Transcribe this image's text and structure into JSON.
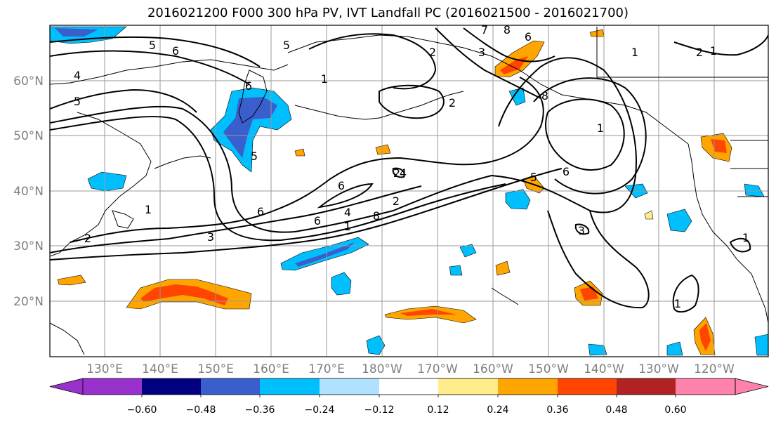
{
  "title": "2016021200 F000 300 hPa PV, IVT Landfall PC (2016021500 - 2016021700)",
  "map": {
    "lat_labels": [
      "60°N",
      "50°N",
      "40°N",
      "30°N",
      "20°N"
    ],
    "lon_labels": [
      "130°E",
      "140°E",
      "150°E",
      "160°E",
      "170°E",
      "180°W",
      "170°W",
      "160°W",
      "150°W",
      "140°W",
      "130°W",
      "120°W"
    ],
    "contour_labels": [
      "5",
      "6",
      "5",
      "4",
      "5",
      "7",
      "8",
      "6",
      "3",
      "1",
      "2",
      "2",
      "1",
      "6",
      "8",
      "6",
      "1",
      "5",
      "6",
      "4",
      "2",
      "6",
      "8",
      "6",
      "5",
      "4",
      "3",
      "2",
      "1",
      "1",
      "3",
      "2",
      "1",
      "1",
      "1",
      "2"
    ]
  },
  "colorbar": {
    "tick_labels": [
      "−0.60",
      "−0.48",
      "−0.36",
      "−0.24",
      "−0.12",
      "0.12",
      "0.24",
      "0.36",
      "0.48",
      "0.60"
    ],
    "colors": [
      "#9932cc",
      "#000080",
      "#3a5fcd",
      "#00bfff",
      "#b0e2ff",
      "#ffffff",
      "#ffec8b",
      "#ffa500",
      "#ff4500",
      "#b22222",
      "#ff82ab"
    ]
  },
  "colors": {
    "grid": "#999999",
    "coast": "#000000",
    "contour": "#000000"
  }
}
